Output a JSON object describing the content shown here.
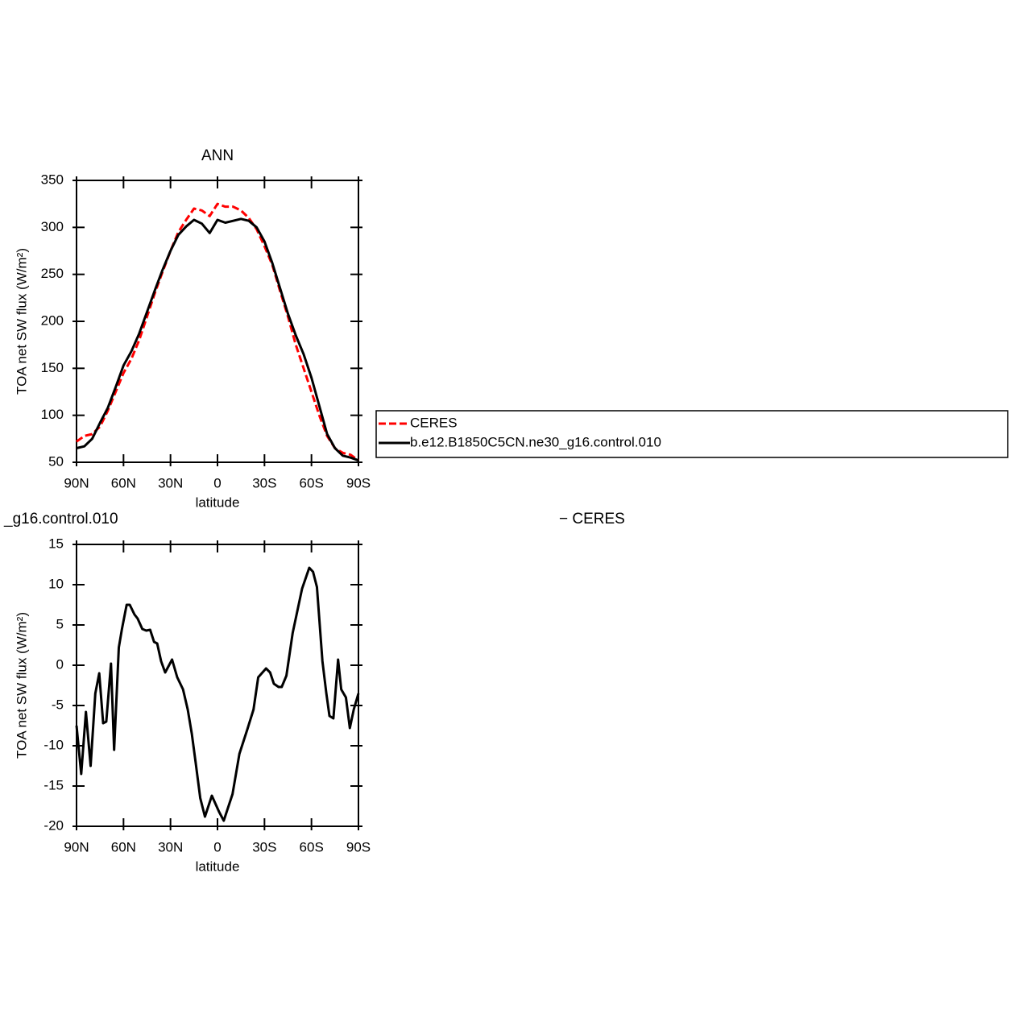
{
  "chart_data": [
    {
      "type": "line",
      "title": "ANN",
      "xlabel": "latitude",
      "ylabel": "TOA net SW flux (W/m²)",
      "x": [
        90,
        85,
        80,
        75,
        70,
        65,
        60,
        55,
        50,
        45,
        40,
        35,
        30,
        25,
        20,
        15,
        10,
        5,
        0,
        -5,
        -10,
        -15,
        -20,
        -25,
        -30,
        -35,
        -40,
        -45,
        -50,
        -55,
        -60,
        -65,
        -70,
        -75,
        -80,
        -85,
        -90
      ],
      "series": [
        {
          "name": "CERES",
          "color": "#ff0000",
          "dash": true,
          "values": [
            72,
            78,
            80,
            88,
            105,
            125,
            145,
            160,
            180,
            205,
            230,
            253,
            275,
            295,
            308,
            320,
            318,
            312,
            325,
            322,
            322,
            318,
            310,
            298,
            280,
            260,
            232,
            205,
            175,
            150,
            125,
            100,
            78,
            65,
            60,
            58,
            52
          ]
        },
        {
          "name": "b.e12.B1850C5CN.ne30_g16.control.010",
          "color": "#000000",
          "dash": false,
          "values": [
            65,
            67,
            75,
            92,
            108,
            130,
            153,
            168,
            187,
            210,
            233,
            255,
            275,
            292,
            301,
            308,
            304,
            294,
            308,
            305,
            307,
            309,
            307,
            300,
            285,
            262,
            235,
            208,
            185,
            165,
            140,
            110,
            80,
            65,
            57,
            55,
            52
          ]
        }
      ],
      "xlim": [
        90,
        -90
      ],
      "xticks": [
        {
          "value": 90,
          "label": "90N"
        },
        {
          "value": 60,
          "label": "60N"
        },
        {
          "value": 30,
          "label": "30N"
        },
        0,
        {
          "value": -30,
          "label": "30S"
        },
        {
          "value": -60,
          "label": "60S"
        },
        {
          "value": -90,
          "label": "90S"
        }
      ],
      "ylim": [
        50,
        350
      ],
      "yticks": [
        50,
        100,
        150,
        200,
        250,
        300,
        350
      ],
      "legend": "right"
    },
    {
      "type": "line",
      "title_left": "_g16.control.010",
      "title_right": "− CERES",
      "xlabel": "latitude",
      "ylabel": "TOA net SW flux (W/m²)",
      "x": [
        90,
        87,
        84,
        81,
        78,
        75.5,
        73,
        71,
        68,
        66,
        63,
        61,
        58,
        56,
        53,
        51,
        48,
        45.5,
        43,
        40.5,
        38.5,
        36,
        33.4,
        29,
        25.7,
        22,
        19,
        16.4,
        14,
        11,
        8,
        3.6,
        -1,
        -4,
        -9.6,
        -14,
        -19,
        -23,
        -26,
        -31,
        -33.6,
        -36,
        -39,
        -41,
        -44,
        -48,
        -54,
        -58.6,
        -61,
        -63.5,
        -67,
        -69.5,
        -71.5,
        -74,
        -77,
        -79,
        -82,
        -84.5,
        -87,
        -90
      ],
      "values": [
        -7.5,
        -13.5,
        -5.8,
        -12.5,
        -3.5,
        -1,
        -7.2,
        -7,
        0.2,
        -10.5,
        2.2,
        4.5,
        7.5,
        7.5,
        6.3,
        5.8,
        4.5,
        4.3,
        4.4,
        2.9,
        2.7,
        0.5,
        -0.9,
        0.7,
        -1.5,
        -3,
        -5.5,
        -8.5,
        -12,
        -16.5,
        -18.8,
        -16.2,
        -18.2,
        -19.3,
        -16,
        -11,
        -8,
        -5.5,
        -1.5,
        -0.4,
        -0.9,
        -2.3,
        -2.7,
        -2.7,
        -1.3,
        4,
        9.5,
        12.1,
        11.6,
        9.7,
        0.5,
        -3.5,
        -6.3,
        -6.6,
        0.7,
        -3,
        -4,
        -7.8,
        -5.5,
        -3.5
      ],
      "color": "#000000",
      "xlim": [
        90,
        -90
      ],
      "xticks": [
        {
          "value": 90,
          "label": "90N"
        },
        {
          "value": 60,
          "label": "60N"
        },
        {
          "value": 30,
          "label": "30N"
        },
        0,
        {
          "value": -30,
          "label": "30S"
        },
        {
          "value": -60,
          "label": "60S"
        },
        {
          "value": -90,
          "label": "90S"
        }
      ],
      "ylim": [
        -20,
        15
      ],
      "yticks": [
        -20,
        -15,
        -10,
        -5,
        0,
        5,
        10,
        15
      ]
    }
  ]
}
